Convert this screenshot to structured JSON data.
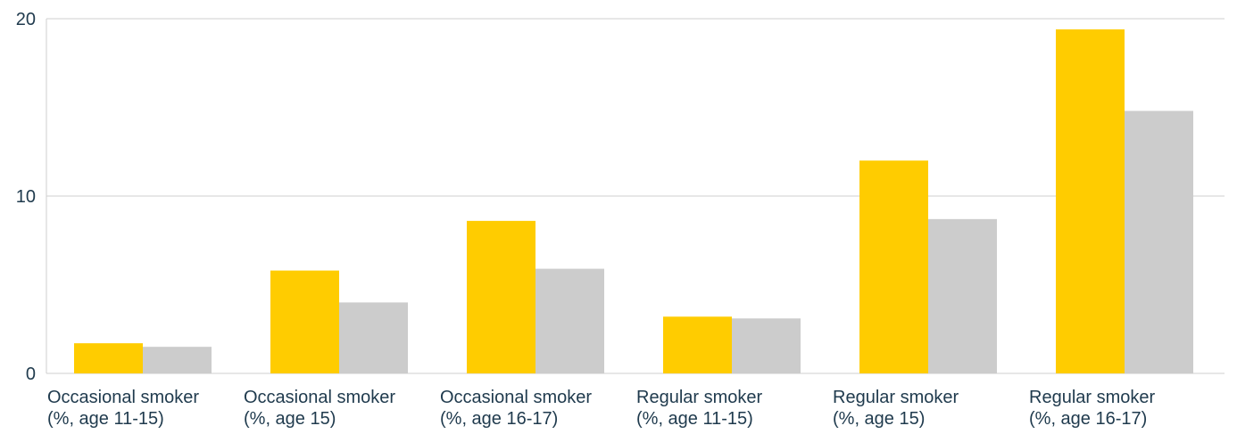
{
  "chart_data": {
    "type": "bar",
    "categories": [
      [
        "Occasional smoker",
        "(%, age 11-15)"
      ],
      [
        "Occasional smoker",
        "(%, age 15)"
      ],
      [
        "Occasional smoker",
        "(%, age 16-17)"
      ],
      [
        "Regular smoker",
        "(%, age 11-15)"
      ],
      [
        "Regular smoker",
        "(%, age 15)"
      ],
      [
        "Regular smoker",
        "(%, age 16-17)"
      ]
    ],
    "series": [
      {
        "color": "#ffcc00",
        "values": [
          1.7,
          5.8,
          8.6,
          3.2,
          12.0,
          19.4
        ]
      },
      {
        "color": "#cccccc",
        "values": [
          1.5,
          4.0,
          5.9,
          3.1,
          8.7,
          14.8
        ]
      }
    ],
    "yticks": [
      "0",
      "10",
      "20"
    ],
    "ylim": [
      0,
      20
    ],
    "grid": "horizontal",
    "legend": "none"
  }
}
